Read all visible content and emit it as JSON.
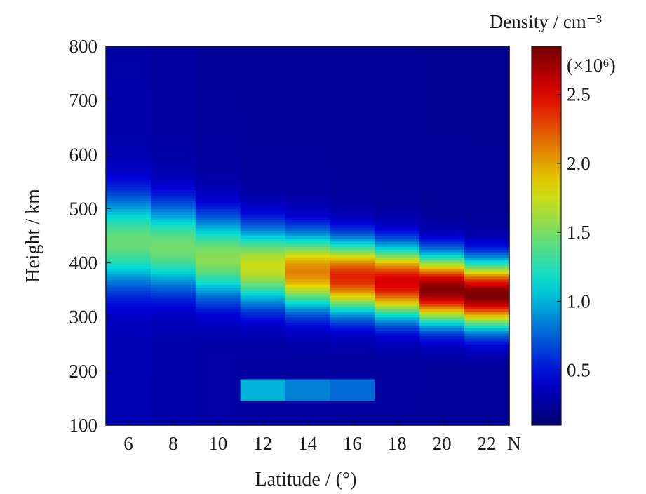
{
  "chart_data": {
    "type": "heatmap",
    "title": "",
    "xlabel": "Latitude / (°)",
    "ylabel": "Height / km",
    "x_unit_suffix": "N",
    "x_centers": [
      6,
      8,
      10,
      12,
      14,
      16,
      18,
      20,
      22
    ],
    "xlim": [
      5,
      23
    ],
    "ylim": [
      100,
      800
    ],
    "x_ticks": [
      6,
      8,
      10,
      12,
      14,
      16,
      18,
      20,
      22
    ],
    "y_ticks": [
      100,
      200,
      300,
      400,
      500,
      600,
      700,
      800
    ],
    "colorbar": {
      "title": "Density / cm⁻³",
      "multiplier": "(×10⁶)",
      "range": [
        0.1,
        2.85
      ],
      "ticks": [
        0.5,
        1.0,
        1.5,
        2.0,
        2.5
      ],
      "tick_labels": [
        "0.5",
        "1.0",
        "1.5",
        "2.0",
        "2.5"
      ],
      "colormap": "jet"
    },
    "columns": [
      {
        "lat": 6,
        "peak_height_km": 440,
        "peak_density": 1.45,
        "width_km": 58,
        "background": 0.33
      },
      {
        "lat": 8,
        "peak_height_km": 430,
        "peak_density": 1.48,
        "width_km": 55,
        "background": 0.3
      },
      {
        "lat": 10,
        "peak_height_km": 410,
        "peak_density": 1.55,
        "width_km": 53,
        "background": 0.28
      },
      {
        "lat": 12,
        "peak_height_km": 395,
        "peak_density": 1.75,
        "width_km": 50,
        "background": 0.27
      },
      {
        "lat": 14,
        "peak_height_km": 385,
        "peak_density": 2.1,
        "width_km": 48,
        "background": 0.27
      },
      {
        "lat": 16,
        "peak_height_km": 375,
        "peak_density": 2.4,
        "width_km": 46,
        "background": 0.26
      },
      {
        "lat": 18,
        "peak_height_km": 365,
        "peak_density": 2.55,
        "width_km": 45,
        "background": 0.26
      },
      {
        "lat": 20,
        "peak_height_km": 352,
        "peak_density": 2.8,
        "width_km": 43,
        "background": 0.25
      },
      {
        "lat": 22,
        "peak_height_km": 342,
        "peak_density": 2.82,
        "width_km": 42,
        "background": 0.25
      }
    ],
    "lower_layer": {
      "height_range_km": [
        145,
        185
      ],
      "segments": [
        {
          "lat": 12,
          "density": 1.0
        },
        {
          "lat": 14,
          "density": 0.85
        },
        {
          "lat": 16,
          "density": 0.78
        }
      ]
    }
  }
}
